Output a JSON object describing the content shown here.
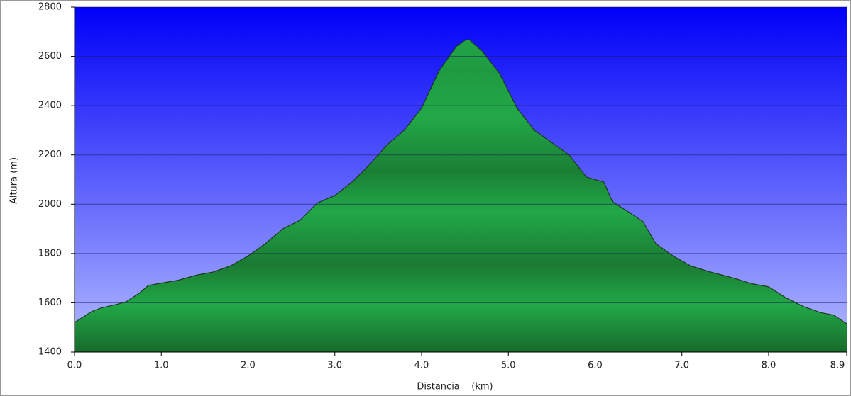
{
  "chart_data": {
    "type": "area",
    "xlabel": "Distancia    (km)",
    "ylabel": "Altura (m)",
    "x": [
      0.0,
      0.2,
      0.3,
      0.5,
      0.6,
      0.75,
      0.85,
      1.0,
      1.2,
      1.4,
      1.6,
      1.8,
      2.0,
      2.2,
      2.4,
      2.6,
      2.8,
      3.0,
      3.2,
      3.4,
      3.6,
      3.8,
      4.0,
      4.2,
      4.4,
      4.5,
      4.55,
      4.7,
      4.9,
      5.1,
      5.3,
      5.5,
      5.7,
      5.9,
      6.1,
      6.2,
      6.4,
      6.55,
      6.7,
      6.9,
      7.1,
      7.3,
      7.6,
      7.8,
      8.0,
      8.2,
      8.4,
      8.6,
      8.75,
      8.9
    ],
    "series": [
      {
        "color": "#1e9e3c",
        "values": [
          1520,
          1565,
          1578,
          1595,
          1605,
          1640,
          1670,
          1680,
          1692,
          1712,
          1725,
          1750,
          1790,
          1840,
          1900,
          1935,
          2005,
          2035,
          2090,
          2160,
          2240,
          2300,
          2390,
          2540,
          2640,
          2665,
          2668,
          2620,
          2530,
          2390,
          2300,
          2250,
          2200,
          2110,
          2090,
          2010,
          1965,
          1930,
          1840,
          1790,
          1750,
          1728,
          1700,
          1678,
          1665,
          1620,
          1585,
          1560,
          1550,
          1515
        ]
      }
    ],
    "xlim": [
      0,
      8.9
    ],
    "ylim": [
      1400,
      2800
    ],
    "xticks": [
      {
        "value": 0,
        "label": "0.0"
      },
      {
        "value": 1,
        "label": "1.0"
      },
      {
        "value": 2,
        "label": "2.0"
      },
      {
        "value": 3,
        "label": "3.0"
      },
      {
        "value": 4,
        "label": "4.0"
      },
      {
        "value": 5,
        "label": "5.0"
      },
      {
        "value": 6,
        "label": "6.0"
      },
      {
        "value": 7,
        "label": "7.0"
      },
      {
        "value": 8,
        "label": "8.0"
      },
      8.9
    ],
    "yticks": [
      1400,
      1600,
      1800,
      2000,
      2200,
      2400,
      2600,
      2800
    ],
    "grid": true
  }
}
